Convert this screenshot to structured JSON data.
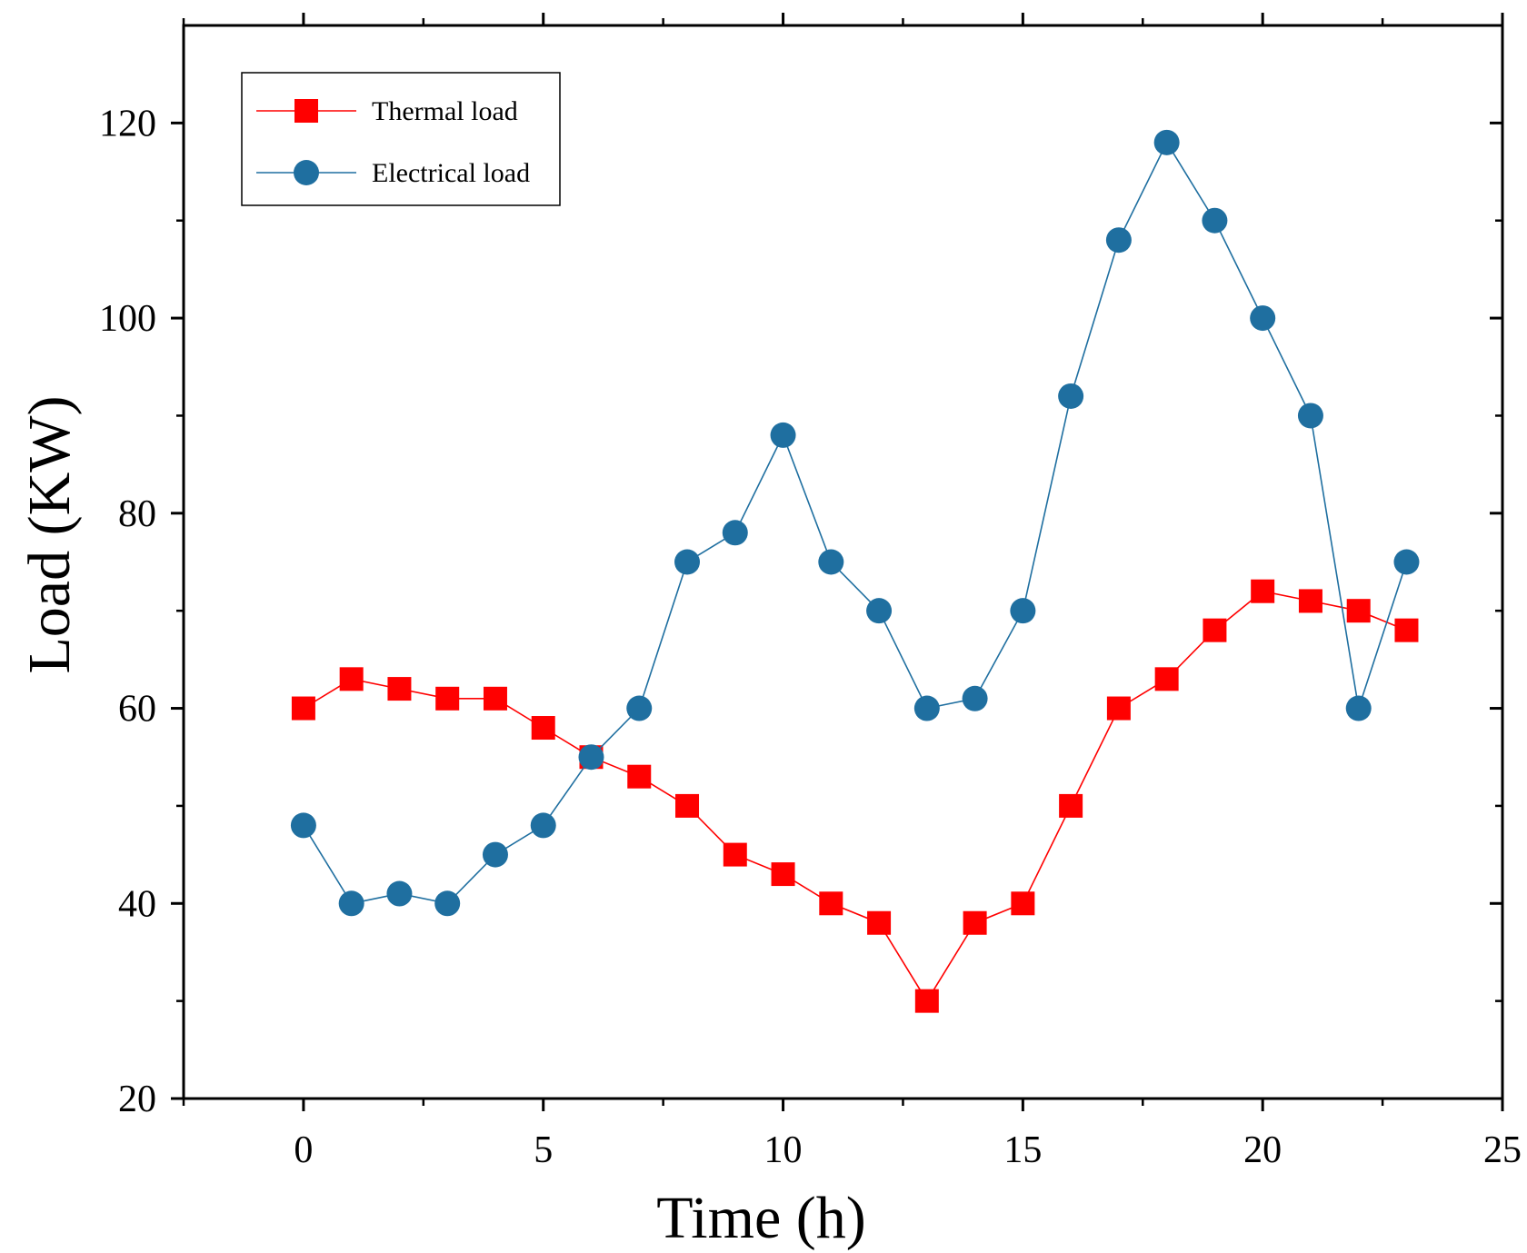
{
  "chart_data": {
    "type": "line",
    "title": "",
    "xlabel": "Time (h)",
    "ylabel": "Load (KW)",
    "xlim": [
      -2.5,
      25
    ],
    "ylim": [
      20,
      130
    ],
    "x_ticks": [
      0,
      5,
      10,
      15,
      20,
      25
    ],
    "x_tick_labels": [
      "0",
      "5",
      "10",
      "15",
      "20",
      "25"
    ],
    "y_ticks": [
      20,
      40,
      60,
      80,
      100,
      120
    ],
    "y_tick_labels": [
      "20",
      "40",
      "60",
      "80",
      "100",
      "120"
    ],
    "grid": false,
    "legend_position": "top-left",
    "x": [
      0,
      1,
      2,
      3,
      4,
      5,
      6,
      7,
      8,
      9,
      10,
      11,
      12,
      13,
      14,
      15,
      16,
      17,
      18,
      19,
      20,
      21,
      22,
      23
    ],
    "series": [
      {
        "name": "Thermal load",
        "color": "#ff0000",
        "marker": "square",
        "values": [
          60,
          63,
          62,
          61,
          61,
          58,
          55,
          53,
          50,
          45,
          43,
          40,
          38,
          30,
          38,
          40,
          50,
          60,
          63,
          68,
          72,
          71,
          70,
          68
        ]
      },
      {
        "name": "Electrical load",
        "color": "#1f6fa0",
        "marker": "circle",
        "values": [
          48,
          40,
          41,
          40,
          45,
          48,
          55,
          60,
          75,
          78,
          88,
          75,
          70,
          60,
          61,
          70,
          92,
          108,
          118,
          110,
          100,
          90,
          60,
          75
        ]
      }
    ]
  }
}
